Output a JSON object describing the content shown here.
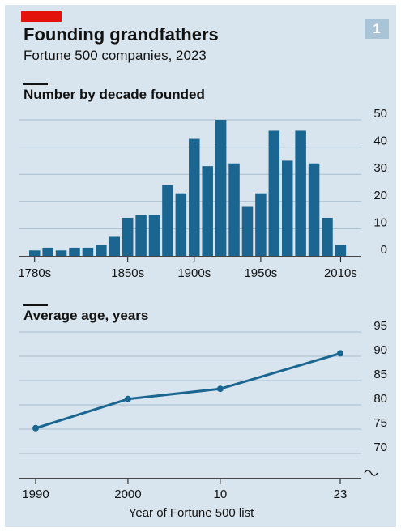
{
  "header": {
    "badge": "1",
    "title": "Founding grandfathers",
    "subtitle": "Fortune 500 companies, 2023"
  },
  "colors": {
    "background": "#d8e5ee",
    "bar": "#1a6691",
    "line": "#1a6691",
    "accent_red": "#e3120b",
    "badge": "#a9c4d7",
    "grid": "#a7bccb"
  },
  "chart_data": [
    {
      "type": "bar",
      "title": "Number by decade founded",
      "categories": [
        "1780s",
        "1790s",
        "1800s",
        "1810s",
        "1820s",
        "1830s",
        "1840s",
        "1850s",
        "1860s",
        "1870s",
        "1880s",
        "1890s",
        "1900s",
        "1910s",
        "1920s",
        "1930s",
        "1940s",
        "1950s",
        "1960s",
        "1970s",
        "1980s",
        "1990s",
        "2000s",
        "2010s"
      ],
      "values": [
        2,
        3,
        2,
        3,
        3,
        4,
        7,
        14,
        15,
        15,
        26,
        23,
        43,
        33,
        50,
        34,
        18,
        23,
        46,
        35,
        46,
        34,
        14,
        4
      ],
      "x_tick_labels": [
        {
          "category": "1780s",
          "label": "1780s"
        },
        {
          "category": "1850s",
          "label": "1850s"
        },
        {
          "category": "1900s",
          "label": "1900s"
        },
        {
          "category": "1950s",
          "label": "1950s"
        },
        {
          "category": "2010s",
          "label": "2010s"
        }
      ],
      "yticks": [
        0,
        10,
        20,
        30,
        40,
        50
      ],
      "ylim": [
        0,
        50
      ],
      "grid": true,
      "y_axis_side": "right"
    },
    {
      "type": "line",
      "title": "Average age, years",
      "x": [
        1990,
        2000,
        2010,
        2023
      ],
      "x_tick_labels": [
        "1990",
        "2000",
        "10",
        "23"
      ],
      "values": [
        75.2,
        81.2,
        83.3,
        90.6
      ],
      "xlabel": "Year of Fortune 500 list",
      "yticks": [
        70,
        75,
        80,
        85,
        90,
        95
      ],
      "ylim": [
        65,
        95
      ],
      "axis_break": true,
      "grid": true,
      "y_axis_side": "right"
    }
  ]
}
